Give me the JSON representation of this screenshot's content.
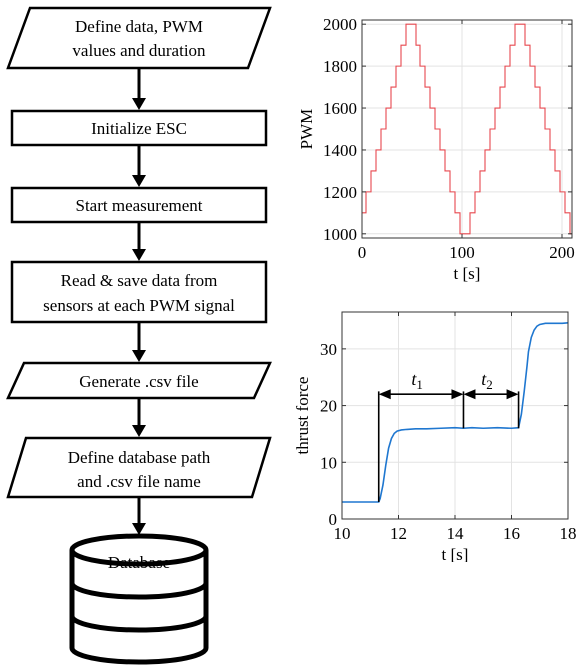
{
  "flowchart": {
    "steps": [
      {
        "shape": "parallelogram",
        "lines": [
          "Define data, PWM",
          "values and duration"
        ]
      },
      {
        "shape": "rect",
        "lines": [
          "Initialize ESC"
        ]
      },
      {
        "shape": "rect",
        "lines": [
          "Start measurement"
        ]
      },
      {
        "shape": "rect",
        "lines": [
          "Read & save data from",
          "sensors at each PWM signal"
        ]
      },
      {
        "shape": "parallelogram",
        "lines": [
          "Generate .csv file"
        ]
      },
      {
        "shape": "parallelogram",
        "lines": [
          "Define database path",
          "and .csv file name"
        ]
      },
      {
        "shape": "cylinder",
        "lines": [
          "Database"
        ]
      }
    ]
  },
  "chart_data": [
    {
      "type": "line",
      "xlabel": "t [s]",
      "ylabel": "PWM",
      "xlim": [
        0,
        210
      ],
      "ylim": [
        980,
        2020
      ],
      "xticks": [
        0,
        100,
        200
      ],
      "yticks": [
        1000,
        1200,
        1400,
        1600,
        1800,
        2000
      ],
      "grid": true,
      "line_color": "#e8484f",
      "series": [
        {
          "x": [
            0,
            4,
            4,
            9,
            9,
            14,
            14,
            19,
            19,
            24,
            24,
            29,
            29,
            34,
            34,
            39,
            39,
            44,
            44,
            49,
            49,
            54,
            54,
            58,
            58,
            63,
            63,
            68,
            68,
            73,
            73,
            78,
            78,
            83,
            83,
            88,
            88,
            93,
            93,
            98,
            98,
            103,
            103,
            108,
            108,
            113,
            113,
            118,
            118,
            123,
            123,
            128,
            128,
            133,
            133,
            138,
            138,
            143,
            143,
            148,
            148,
            153,
            153,
            158,
            158,
            163,
            163,
            168,
            168,
            173,
            173,
            178,
            178,
            183,
            183,
            188,
            188,
            193,
            193,
            198,
            198,
            203,
            203,
            208,
            208,
            210
          ],
          "y": [
            1100,
            1100,
            1200,
            1200,
            1300,
            1300,
            1400,
            1400,
            1500,
            1500,
            1600,
            1600,
            1700,
            1700,
            1800,
            1800,
            1900,
            1900,
            2000,
            2000,
            2000,
            2000,
            1900,
            1900,
            1800,
            1800,
            1700,
            1700,
            1600,
            1600,
            1500,
            1500,
            1400,
            1400,
            1300,
            1300,
            1200,
            1200,
            1100,
            1100,
            1000,
            1000,
            1000,
            1000,
            1100,
            1100,
            1200,
            1200,
            1300,
            1300,
            1400,
            1400,
            1500,
            1500,
            1600,
            1600,
            1700,
            1700,
            1800,
            1800,
            1900,
            1900,
            2000,
            2000,
            2000,
            2000,
            1900,
            1900,
            1800,
            1800,
            1700,
            1700,
            1600,
            1600,
            1500,
            1500,
            1400,
            1400,
            1300,
            1300,
            1200,
            1200,
            1100,
            1100,
            1000,
            1000
          ]
        }
      ]
    },
    {
      "type": "line",
      "xlabel": "t [s]",
      "ylabel": "thrust force",
      "xlim": [
        10,
        18
      ],
      "ylim": [
        0,
        36.5
      ],
      "xticks": [
        10,
        12,
        14,
        16,
        18
      ],
      "yticks": [
        0,
        10,
        20,
        30
      ],
      "grid": true,
      "line_color": "#1f77d0",
      "series": [
        {
          "x": [
            10,
            11.3,
            11.35,
            11.45,
            11.55,
            11.65,
            11.75,
            11.85,
            11.95,
            12.1,
            12.3,
            12.6,
            13.0,
            13.5,
            14.0,
            14.3,
            14.6,
            15.0,
            15.5,
            16.0,
            16.25,
            16.35,
            16.45,
            16.55,
            16.6,
            16.7,
            16.8,
            16.9,
            17.0,
            17.2,
            17.5,
            17.8,
            18
          ],
          "y": [
            3.0,
            3.0,
            3.6,
            6.0,
            9.5,
            12.5,
            14.2,
            15.1,
            15.5,
            15.7,
            15.8,
            15.9,
            15.9,
            16.0,
            16.1,
            16.0,
            16.1,
            16.0,
            16.1,
            16.0,
            16.1,
            18.5,
            22.5,
            27.0,
            29.5,
            32.0,
            33.3,
            34.0,
            34.3,
            34.5,
            34.5,
            34.5,
            34.6
          ]
        }
      ],
      "annotations": [
        {
          "label": "t",
          "sub": "1",
          "from": 11.3,
          "to": 14.3
        },
        {
          "label": "t",
          "sub": "2",
          "from": 14.3,
          "to": 16.25
        }
      ],
      "annotation_y": 22,
      "marker_lines": [
        {
          "x": 11.3,
          "y_from": 3,
          "y_to": 22.5
        },
        {
          "x": 14.3,
          "y_from": 16,
          "y_to": 22.5
        },
        {
          "x": 16.25,
          "y_from": 16,
          "y_to": 22.5
        }
      ]
    }
  ]
}
